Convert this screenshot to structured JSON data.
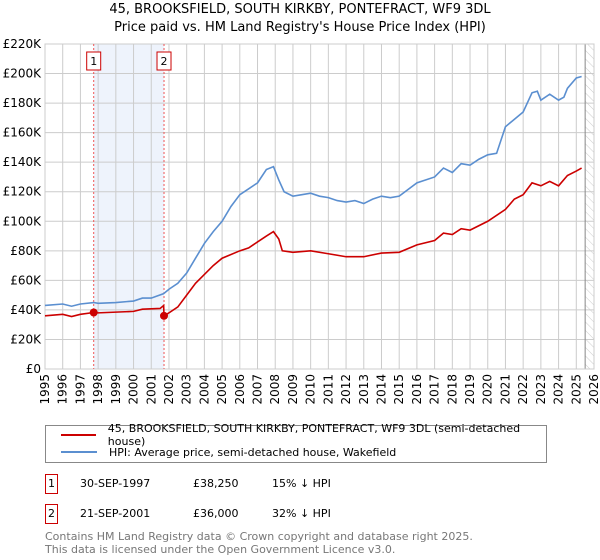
{
  "chart_data": {
    "type": "line",
    "title": "45, BROOKSFIELD, SOUTH KIRKBY, PONTEFRACT, WF9 3DL",
    "subtitle": "Price paid vs. HM Land Registry's House Price Index (HPI)",
    "xlim": [
      1995,
      2026
    ],
    "ylim": [
      0,
      220000
    ],
    "x_ticks": [
      "1995",
      "1996",
      "1997",
      "1998",
      "1999",
      "2000",
      "2001",
      "2002",
      "2003",
      "2004",
      "2005",
      "2006",
      "2007",
      "2008",
      "2009",
      "2010",
      "2011",
      "2012",
      "2013",
      "2014",
      "2015",
      "2016",
      "2017",
      "2018",
      "2019",
      "2020",
      "2021",
      "2022",
      "2023",
      "2024",
      "2025",
      "2026"
    ],
    "y_ticks": [
      {
        "v": 0,
        "l": "£0"
      },
      {
        "v": 20000,
        "l": "£20K"
      },
      {
        "v": 40000,
        "l": "£40K"
      },
      {
        "v": 60000,
        "l": "£60K"
      },
      {
        "v": 80000,
        "l": "£80K"
      },
      {
        "v": 100000,
        "l": "£100K"
      },
      {
        "v": 120000,
        "l": "£120K"
      },
      {
        "v": 140000,
        "l": "£140K"
      },
      {
        "v": 160000,
        "l": "£160K"
      },
      {
        "v": 180000,
        "l": "£180K"
      },
      {
        "v": 200000,
        "l": "£200K"
      },
      {
        "v": 220000,
        "l": "£220K"
      }
    ],
    "grid": true,
    "shaded_span": [
      1997.75,
      2001.72
    ],
    "hatched_from": 2025.5,
    "series": [
      {
        "name": "45, BROOKSFIELD, SOUTH KIRKBY, PONTEFRACT, WF9 3DL (semi-detached house)",
        "color": "#cc0000",
        "points": [
          [
            1995,
            36000
          ],
          [
            1996,
            37000
          ],
          [
            1996.5,
            35500
          ],
          [
            1997,
            37000
          ],
          [
            1997.75,
            38250
          ],
          [
            1998,
            38000
          ],
          [
            1999,
            38500
          ],
          [
            2000,
            39000
          ],
          [
            2000.5,
            40500
          ],
          [
            2001.5,
            41000
          ],
          [
            2001.7,
            43000
          ],
          [
            2001.72,
            36000
          ],
          [
            2002,
            38000
          ],
          [
            2002.5,
            42000
          ],
          [
            2003,
            50000
          ],
          [
            2003.5,
            58000
          ],
          [
            2004,
            64000
          ],
          [
            2004.5,
            70000
          ],
          [
            2005,
            75000
          ],
          [
            2006,
            80000
          ],
          [
            2006.5,
            82000
          ],
          [
            2007,
            86000
          ],
          [
            2007.5,
            90000
          ],
          [
            2007.9,
            93000
          ],
          [
            2008.2,
            88000
          ],
          [
            2008.4,
            80000
          ],
          [
            2009,
            79000
          ],
          [
            2010,
            80000
          ],
          [
            2011,
            78000
          ],
          [
            2012,
            76000
          ],
          [
            2013,
            76000
          ],
          [
            2014,
            78500
          ],
          [
            2015,
            79000
          ],
          [
            2016,
            84000
          ],
          [
            2017,
            87000
          ],
          [
            2017.5,
            92000
          ],
          [
            2018,
            91000
          ],
          [
            2018.5,
            95000
          ],
          [
            2019,
            94000
          ],
          [
            2020,
            100000
          ],
          [
            2021,
            108000
          ],
          [
            2021.5,
            115000
          ],
          [
            2022,
            118000
          ],
          [
            2022.5,
            126000
          ],
          [
            2023,
            124000
          ],
          [
            2023.5,
            127000
          ],
          [
            2024,
            124000
          ],
          [
            2024.5,
            131000
          ],
          [
            2025,
            134000
          ],
          [
            2025.3,
            136000
          ]
        ]
      },
      {
        "name": "HPI: Average price, semi-detached house, Wakefield",
        "color": "#5b8fd0",
        "points": [
          [
            1995,
            43000
          ],
          [
            1996,
            44000
          ],
          [
            1996.5,
            42500
          ],
          [
            1997,
            44000
          ],
          [
            1997.75,
            45000
          ],
          [
            1998,
            44500
          ],
          [
            1999,
            45000
          ],
          [
            2000,
            46000
          ],
          [
            2000.5,
            48000
          ],
          [
            2001,
            48000
          ],
          [
            2001.7,
            51000
          ],
          [
            2002,
            54000
          ],
          [
            2002.5,
            58000
          ],
          [
            2003,
            65000
          ],
          [
            2003.5,
            75000
          ],
          [
            2004,
            85000
          ],
          [
            2004.5,
            93000
          ],
          [
            2005,
            100000
          ],
          [
            2005.5,
            110000
          ],
          [
            2006,
            118000
          ],
          [
            2006.5,
            122000
          ],
          [
            2007,
            126000
          ],
          [
            2007.5,
            135000
          ],
          [
            2007.9,
            137000
          ],
          [
            2008.2,
            128000
          ],
          [
            2008.5,
            120000
          ],
          [
            2009,
            117000
          ],
          [
            2009.5,
            118000
          ],
          [
            2010,
            119000
          ],
          [
            2010.5,
            117000
          ],
          [
            2011,
            116000
          ],
          [
            2011.5,
            114000
          ],
          [
            2012,
            113000
          ],
          [
            2012.5,
            114000
          ],
          [
            2013,
            112000
          ],
          [
            2013.5,
            115000
          ],
          [
            2014,
            117000
          ],
          [
            2014.5,
            116000
          ],
          [
            2015,
            117000
          ],
          [
            2016,
            126000
          ],
          [
            2017,
            130000
          ],
          [
            2017.5,
            136000
          ],
          [
            2018,
            133000
          ],
          [
            2018.5,
            139000
          ],
          [
            2019,
            138000
          ],
          [
            2019.5,
            142000
          ],
          [
            2020,
            145000
          ],
          [
            2020.5,
            146000
          ],
          [
            2021,
            164000
          ],
          [
            2021.5,
            169000
          ],
          [
            2022,
            174000
          ],
          [
            2022.5,
            187000
          ],
          [
            2022.8,
            188000
          ],
          [
            2023,
            182000
          ],
          [
            2023.5,
            186000
          ],
          [
            2024,
            182000
          ],
          [
            2024.3,
            184000
          ],
          [
            2024.5,
            190000
          ],
          [
            2025,
            197000
          ],
          [
            2025.3,
            198000
          ]
        ]
      }
    ],
    "sales": [
      {
        "label": "1",
        "x": 1997.75,
        "y": 38250,
        "date": "30-SEP-1997",
        "price": "£38,250",
        "hpi": "15% ↓ HPI"
      },
      {
        "label": "2",
        "x": 2001.72,
        "y": 36000,
        "date": "21-SEP-2001",
        "price": "£36,000",
        "hpi": "32% ↓ HPI"
      }
    ]
  },
  "footer": {
    "line1": "Contains HM Land Registry data © Crown copyright and database right 2025.",
    "line2": "This data is licensed under the Open Government Licence v3.0."
  }
}
